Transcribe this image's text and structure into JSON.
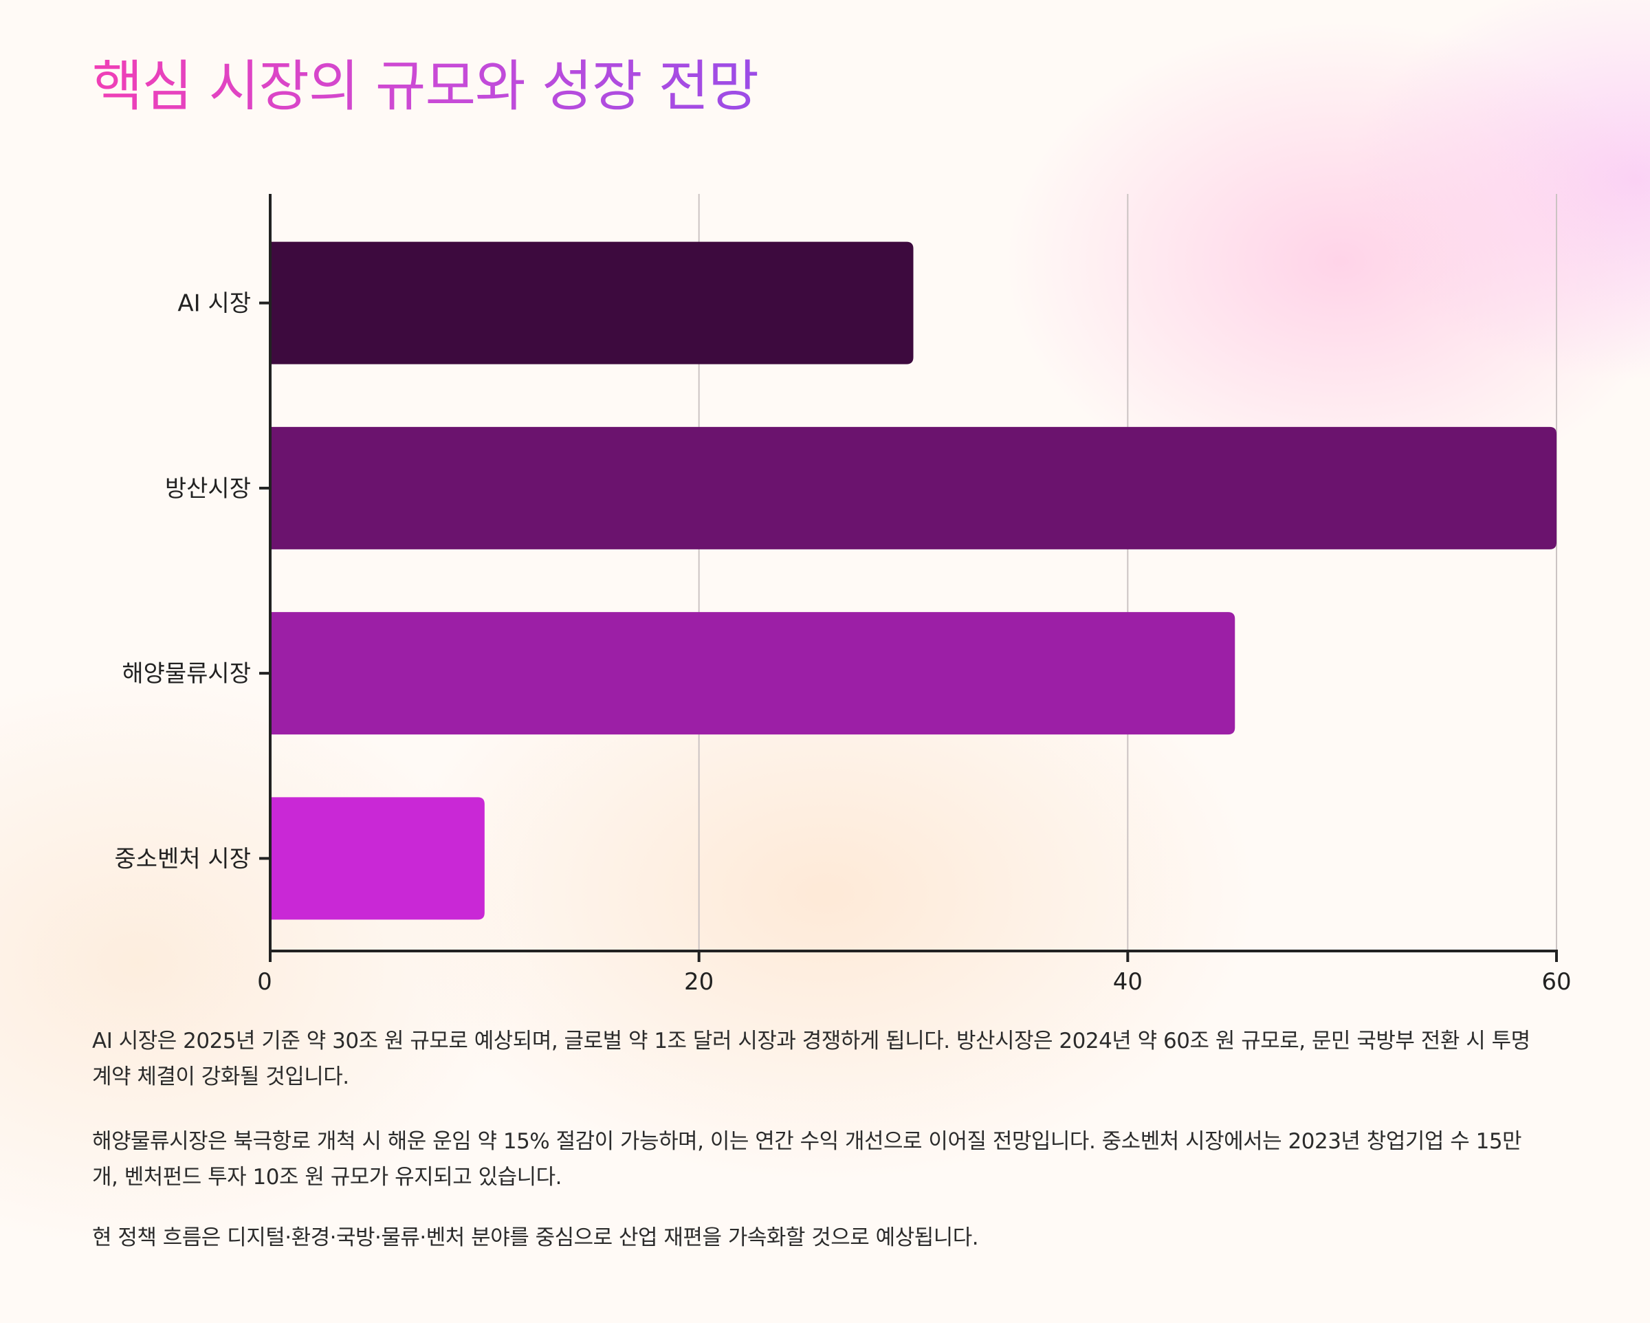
{
  "title": "핵심 시장의 규모와 성장 전망",
  "chart_data": {
    "type": "bar",
    "orientation": "horizontal",
    "categories": [
      "AI 시장",
      "방산시장",
      "해양물류시장",
      "중소벤처 시장"
    ],
    "values": [
      30,
      60,
      45,
      10
    ],
    "colors": [
      "#3d0a3e",
      "#6b136e",
      "#9c1fa6",
      "#c928d6"
    ],
    "xlim": [
      0,
      60
    ],
    "xticks": [
      0,
      20,
      40,
      60
    ],
    "grid": true,
    "xlabel": "",
    "ylabel": ""
  },
  "paragraphs": [
    "AI 시장은 2025년 기준 약 30조 원 규모로 예상되며, 글로벌 약 1조 달러 시장과 경쟁하게 됩니다. 방산시장은 2024년 약 60조 원 규모로, 문민 국방부 전환 시 투명 계약 체결이 강화될 것입니다.",
    "해양물류시장은 북극항로 개척 시 해운 운임 약 15% 절감이 가능하며, 이는 연간 수익 개선으로 이어질 전망입니다. 중소벤처 시장에서는 2023년 창업기업 수 15만 개, 벤처펀드 투자 10조 원 규모가 유지되고 있습니다.",
    "현 정책 흐름은 디지털·환경·국방·물류·벤처 분야를 중심으로 산업 재편을 가속화할 것으로 예상됩니다."
  ]
}
